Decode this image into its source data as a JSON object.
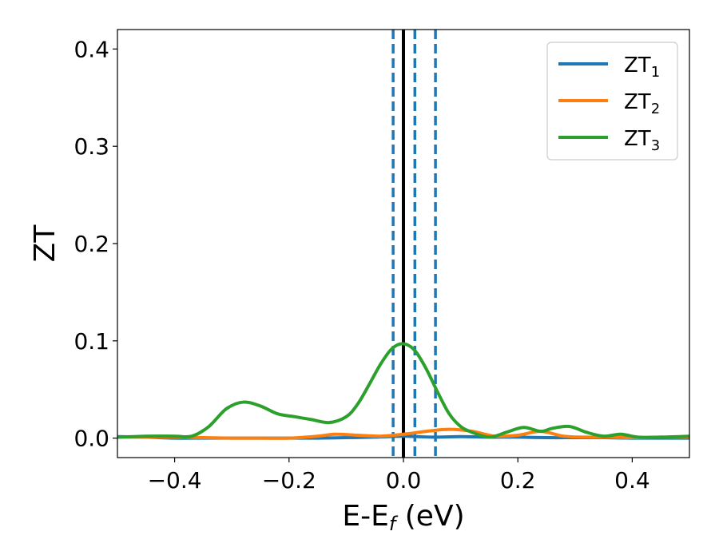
{
  "chart_data": {
    "type": "line",
    "xlabel_main": "E-E",
    "xlabel_sub": "f",
    "xlabel_unit": " (eV)",
    "ylabel": "ZT",
    "xlim": [
      -0.5,
      0.5
    ],
    "ylim": [
      -0.02,
      0.42
    ],
    "xticks": [
      {
        "v": -0.4,
        "label": "−0.4"
      },
      {
        "v": -0.2,
        "label": "−0.2"
      },
      {
        "v": 0.0,
        "label": "0.0"
      },
      {
        "v": 0.2,
        "label": "0.2"
      },
      {
        "v": 0.4,
        "label": "0.4"
      }
    ],
    "yticks": [
      {
        "v": 0.0,
        "label": "0.0"
      },
      {
        "v": 0.1,
        "label": "0.1"
      },
      {
        "v": 0.2,
        "label": "0.2"
      },
      {
        "v": 0.3,
        "label": "0.3"
      },
      {
        "v": 0.4,
        "label": "0.4"
      }
    ],
    "grid": false,
    "legend_position": "top-right",
    "vlines": [
      {
        "x": 0.0,
        "color": "#000000",
        "style": "solid"
      },
      {
        "x": -0.018,
        "color": "#1f77b4",
        "style": "dashed"
      },
      {
        "x": 0.02,
        "color": "#1f77b4",
        "style": "dashed"
      },
      {
        "x": 0.056,
        "color": "#1f77b4",
        "style": "dashed"
      }
    ],
    "series": [
      {
        "name_main": "ZT",
        "name_sub": "1",
        "color": "#1f77b4",
        "x": [
          -0.5,
          -0.45,
          -0.4,
          -0.35,
          -0.3,
          -0.25,
          -0.2,
          -0.15,
          -0.1,
          -0.05,
          0.0,
          0.05,
          0.1,
          0.15,
          0.2,
          0.25,
          0.3,
          0.35,
          0.4,
          0.45,
          0.5
        ],
        "y": [
          0.0015,
          0.001,
          0.0,
          0.0,
          0.0,
          0.0,
          0.0,
          0.0,
          0.0005,
          0.001,
          0.002,
          0.001,
          0.0015,
          0.001,
          0.001,
          0.0005,
          0.0005,
          0.0005,
          0.0,
          0.0,
          0.0
        ]
      },
      {
        "name_main": "ZT",
        "name_sub": "2",
        "color": "#ff7f0e",
        "x": [
          -0.5,
          -0.45,
          -0.4,
          -0.35,
          -0.3,
          -0.25,
          -0.2,
          -0.15,
          -0.12,
          -0.08,
          -0.04,
          0.0,
          0.04,
          0.08,
          0.12,
          0.16,
          0.2,
          0.24,
          0.28,
          0.32,
          0.36,
          0.4,
          0.45,
          0.5
        ],
        "y": [
          0.001,
          0.001,
          0.001,
          0.0005,
          0.0,
          0.0,
          0.0,
          0.002,
          0.004,
          0.003,
          0.002,
          0.004,
          0.007,
          0.009,
          0.007,
          0.002,
          0.003,
          0.007,
          0.002,
          0.001,
          0.001,
          0.0005,
          0.001,
          0.001
        ]
      },
      {
        "name_main": "ZT",
        "name_sub": "3",
        "color": "#2ca02c",
        "x": [
          -0.5,
          -0.45,
          -0.4,
          -0.37,
          -0.34,
          -0.31,
          -0.28,
          -0.25,
          -0.22,
          -0.19,
          -0.16,
          -0.13,
          -0.1,
          -0.08,
          -0.06,
          -0.04,
          -0.02,
          0.0,
          0.02,
          0.04,
          0.06,
          0.08,
          0.1,
          0.12,
          0.15,
          0.18,
          0.21,
          0.24,
          0.26,
          0.29,
          0.32,
          0.35,
          0.38,
          0.41,
          0.45,
          0.5
        ],
        "y": [
          0.001,
          0.002,
          0.002,
          0.002,
          0.012,
          0.03,
          0.037,
          0.033,
          0.025,
          0.022,
          0.019,
          0.016,
          0.022,
          0.035,
          0.055,
          0.076,
          0.092,
          0.097,
          0.09,
          0.071,
          0.047,
          0.025,
          0.012,
          0.006,
          0.001,
          0.006,
          0.011,
          0.007,
          0.01,
          0.012,
          0.006,
          0.002,
          0.004,
          0.001,
          0.001,
          0.002
        ]
      }
    ]
  }
}
